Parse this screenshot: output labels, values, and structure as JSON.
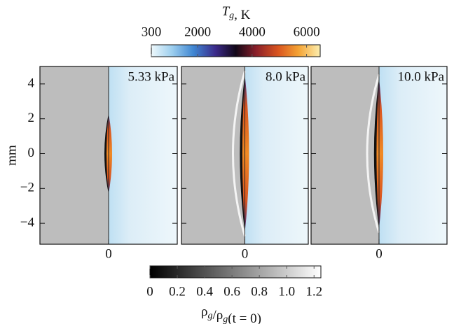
{
  "chart_data": {
    "type": "heatmap",
    "panels": [
      {
        "label": "5.33 kPa"
      },
      {
        "label": "8.0 kPa"
      },
      {
        "label": "10.0 kPa"
      }
    ],
    "ylabel": "mm",
    "ylim": [
      -5.2,
      5
    ],
    "yticks": [
      {
        "value": -4,
        "label": "−4"
      },
      {
        "value": -2,
        "label": "−2"
      },
      0,
      2,
      4
    ],
    "xlim": [
      -4,
      4
    ],
    "xticks": [
      0
    ],
    "colorbars": [
      {
        "label": "Tg, K",
        "lim": [
          300,
          6500
        ],
        "ticks": [
          300,
          2000,
          4000,
          6000
        ]
      },
      {
        "label": "ρg/ρg(t = 0)",
        "lim": [
          0,
          1.25
        ],
        "ticks": [
          0,
          0.2,
          0.4,
          0.6,
          0.8,
          {
            "value": 1,
            "label": "1.0"
          },
          1.2
        ]
      }
    ]
  }
}
